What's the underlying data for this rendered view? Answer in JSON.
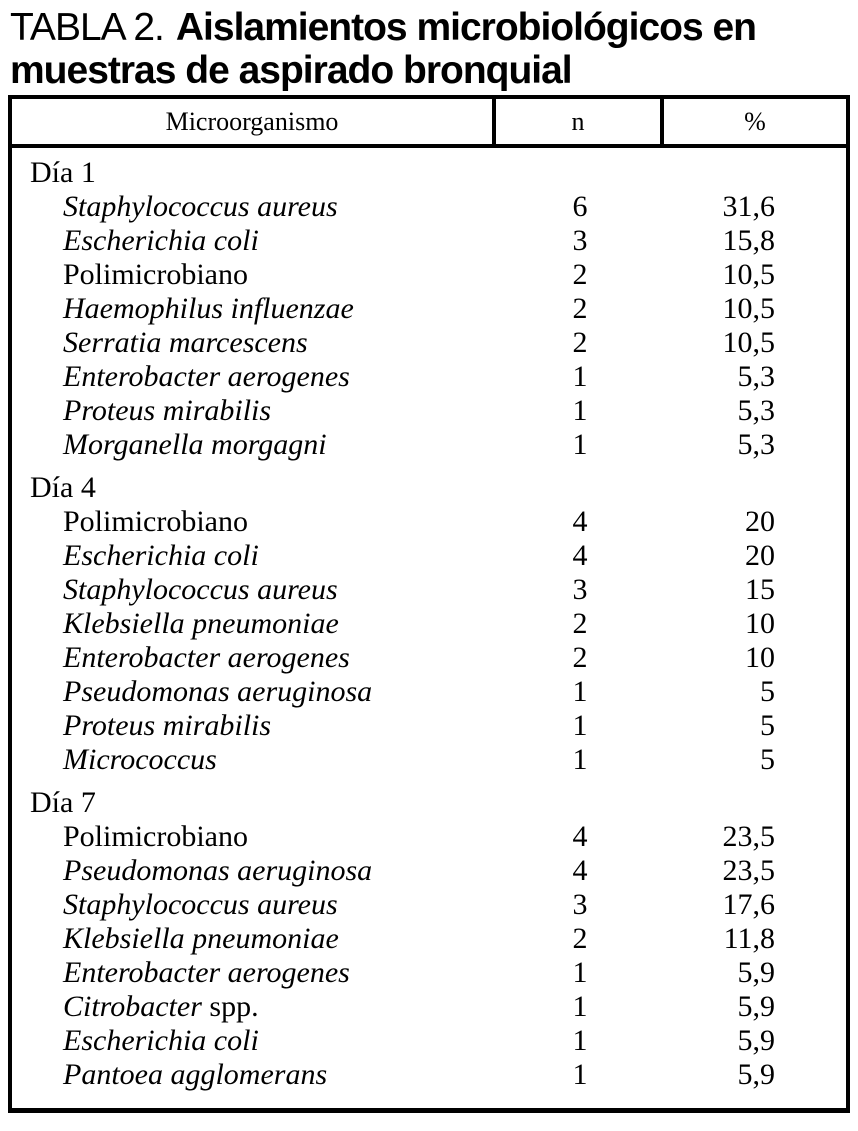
{
  "title": {
    "prefix": "TABLA 2.",
    "line1_bold": "Aislamientos microbiológicos en",
    "line2_bold": "muestras de aspirado bronquial"
  },
  "table": {
    "headers": {
      "name": "Microorganismo",
      "n": "n",
      "pct": "%"
    },
    "sections": [
      {
        "heading": "Día 1",
        "rows": [
          {
            "name": "Staphylococcus aureus",
            "italic": true,
            "n": "6",
            "pct": "31,6"
          },
          {
            "name": "Escherichia coli",
            "italic": true,
            "n": "3",
            "pct": "15,8"
          },
          {
            "name": "Polimicrobiano",
            "italic": false,
            "n": "2",
            "pct": "10,5"
          },
          {
            "name": "Haemophilus influenzae",
            "italic": true,
            "n": "2",
            "pct": "10,5"
          },
          {
            "name": "Serratia marcescens",
            "italic": true,
            "n": "2",
            "pct": "10,5"
          },
          {
            "name": "Enterobacter aerogenes",
            "italic": true,
            "n": "1",
            "pct": "5,3"
          },
          {
            "name": "Proteus mirabilis",
            "italic": true,
            "n": "1",
            "pct": "5,3"
          },
          {
            "name": "Morganella morgagni",
            "italic": true,
            "n": "1",
            "pct": "5,3"
          }
        ]
      },
      {
        "heading": "Día 4",
        "rows": [
          {
            "name": "Polimicrobiano",
            "italic": false,
            "n": "4",
            "pct": "20"
          },
          {
            "name": "Escherichia coli",
            "italic": true,
            "n": "4",
            "pct": "20"
          },
          {
            "name": "Staphylococcus aureus",
            "italic": true,
            "n": "3",
            "pct": "15"
          },
          {
            "name": "Klebsiella pneumoniae",
            "italic": true,
            "n": "2",
            "pct": "10"
          },
          {
            "name": "Enterobacter aerogenes",
            "italic": true,
            "n": "2",
            "pct": "10"
          },
          {
            "name": "Pseudomonas aeruginosa",
            "italic": true,
            "n": "1",
            "pct": "5"
          },
          {
            "name": "Proteus mirabilis",
            "italic": true,
            "n": "1",
            "pct": "5"
          },
          {
            "name": "Micrococcus",
            "italic": true,
            "n": "1",
            "pct": "5"
          }
        ]
      },
      {
        "heading": "Día 7",
        "rows": [
          {
            "name": "Polimicrobiano",
            "italic": false,
            "n": "4",
            "pct": "23,5"
          },
          {
            "name": "Pseudomonas aeruginosa",
            "italic": true,
            "n": "4",
            "pct": "23,5"
          },
          {
            "name": "Staphylococcus aureus",
            "italic": true,
            "n": "3",
            "pct": "17,6"
          },
          {
            "name": "Klebsiella pneumoniae",
            "italic": true,
            "n": "2",
            "pct": "11,8"
          },
          {
            "name": "Enterobacter aerogenes",
            "italic": true,
            "n": "1",
            "pct": "5,9"
          },
          {
            "name": "Citrobacter",
            "suffix": " spp.",
            "italic": true,
            "n": "1",
            "pct": "5,9"
          },
          {
            "name": "Escherichia coli",
            "italic": true,
            "n": "1",
            "pct": "5,9"
          },
          {
            "name": "Pantoea agglomerans",
            "italic": true,
            "n": "1",
            "pct": "5,9"
          }
        ]
      }
    ]
  },
  "colors": {
    "text": "#000000",
    "background": "#ffffff",
    "border": "#000000"
  }
}
